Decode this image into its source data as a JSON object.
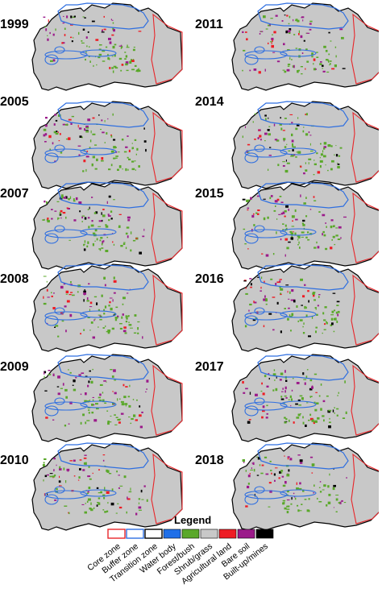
{
  "panels": [
    {
      "year": "1999"
    },
    {
      "year": "2011"
    },
    {
      "year": "2005"
    },
    {
      "year": "2014"
    },
    {
      "year": "2007"
    },
    {
      "year": "2015"
    },
    {
      "year": "2008"
    },
    {
      "year": "2016"
    },
    {
      "year": "2009"
    },
    {
      "year": "2017"
    },
    {
      "year": "2010"
    },
    {
      "year": "2018"
    }
  ],
  "legend": {
    "title": "Legend",
    "items": [
      {
        "label": "Core zone",
        "color": "#e8262a",
        "style": "outline"
      },
      {
        "label": "Buffer zone",
        "color": "#2f6fe0",
        "style": "outline"
      },
      {
        "label": "Transition zone",
        "color": "#000000",
        "style": "outline"
      },
      {
        "label": "Water body",
        "color": "#1f6fe8",
        "style": "fill"
      },
      {
        "label": "Forest/bush",
        "color": "#5aa82a",
        "style": "fill"
      },
      {
        "label": "Shrub/grass",
        "color": "#c8c8c8",
        "style": "fill"
      },
      {
        "label": "Agricultural land",
        "color": "#ee1c24",
        "style": "fill"
      },
      {
        "label": "Bare soil",
        "color": "#9b1a8a",
        "style": "fill"
      },
      {
        "label": "Built-up/mines",
        "color": "#000000",
        "style": "fill"
      }
    ]
  }
}
